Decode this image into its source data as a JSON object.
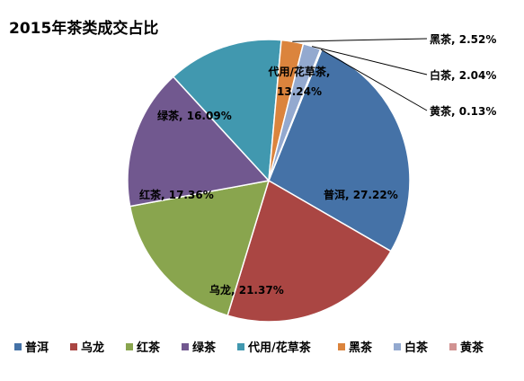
{
  "chart_data": {
    "type": "pie",
    "title": "2015年茶类成交占比",
    "legend_position": "bottom",
    "slices": [
      {
        "name": "普洱",
        "label": "普洱, 27.22%",
        "value": 27.22,
        "color": "#4572A7"
      },
      {
        "name": "乌龙",
        "label": "乌龙, 21.37%",
        "value": 21.37,
        "color": "#AA4643"
      },
      {
        "name": "红茶",
        "label": "红茶, 17.36%",
        "value": 17.36,
        "color": "#89A54E"
      },
      {
        "name": "绿茶",
        "label": "绿茶, 16.09%",
        "value": 16.09,
        "color": "#71588F"
      },
      {
        "name": "代用/花草茶",
        "label": "代用/花草茶, 13.24%",
        "value": 13.24,
        "color": "#4198AF"
      },
      {
        "name": "黑茶",
        "label": "黑茶, 2.52%",
        "value": 2.52,
        "color": "#DB843D"
      },
      {
        "name": "白茶",
        "label": "白茶, 2.04%",
        "value": 2.04,
        "color": "#93A9CF"
      },
      {
        "name": "黄茶",
        "label": "黄茶, 0.13%",
        "value": 0.13,
        "color": "#D19392"
      }
    ]
  }
}
